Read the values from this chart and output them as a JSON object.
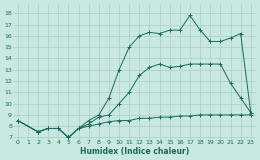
{
  "xlabel": "Humidex (Indice chaleur)",
  "background_color": "#c8e8e0",
  "grid_color": "#a8cec8",
  "line_color": "#1a6b5a",
  "xlim": [
    -0.5,
    23.5
  ],
  "ylim": [
    6.8,
    18.8
  ],
  "xticks": [
    0,
    1,
    2,
    3,
    4,
    5,
    6,
    7,
    8,
    9,
    10,
    11,
    12,
    13,
    14,
    15,
    16,
    17,
    18,
    19,
    20,
    21,
    22,
    23
  ],
  "yticks": [
    7,
    8,
    9,
    10,
    11,
    12,
    13,
    14,
    15,
    16,
    17,
    18
  ],
  "line1_x": [
    0,
    2,
    3,
    4,
    5,
    6,
    7,
    8,
    9,
    10,
    11,
    12,
    13,
    14,
    15,
    16,
    17,
    18,
    19,
    20,
    21,
    22,
    23
  ],
  "line1_y": [
    8.5,
    7.5,
    7.8,
    7.8,
    7.0,
    7.8,
    8.0,
    8.2,
    8.4,
    8.5,
    8.5,
    8.7,
    8.7,
    8.8,
    8.8,
    8.9,
    8.9,
    9.0,
    9.0,
    9.0,
    9.0,
    9.0,
    9.0
  ],
  "line2_x": [
    0,
    2,
    3,
    4,
    5,
    6,
    7,
    8,
    9,
    10,
    11,
    12,
    13,
    14,
    15,
    16,
    17,
    18,
    19,
    20,
    21,
    22,
    23
  ],
  "line2_y": [
    8.5,
    7.5,
    7.8,
    7.8,
    7.0,
    7.8,
    8.2,
    8.8,
    9.0,
    10.0,
    11.0,
    12.5,
    13.2,
    13.5,
    13.2,
    13.3,
    13.5,
    13.5,
    13.5,
    13.5,
    11.8,
    10.5,
    9.2
  ],
  "line3_x": [
    0,
    2,
    3,
    4,
    5,
    6,
    7,
    8,
    9,
    10,
    11,
    12,
    13,
    14,
    15,
    16,
    17,
    18,
    19,
    20,
    21,
    22,
    23
  ],
  "line3_y": [
    8.5,
    7.5,
    7.8,
    7.8,
    7.0,
    7.8,
    8.5,
    9.0,
    10.5,
    13.0,
    15.0,
    16.0,
    16.3,
    16.2,
    16.5,
    16.5,
    17.8,
    16.5,
    15.5,
    15.5,
    15.8,
    16.2,
    9.2
  ]
}
